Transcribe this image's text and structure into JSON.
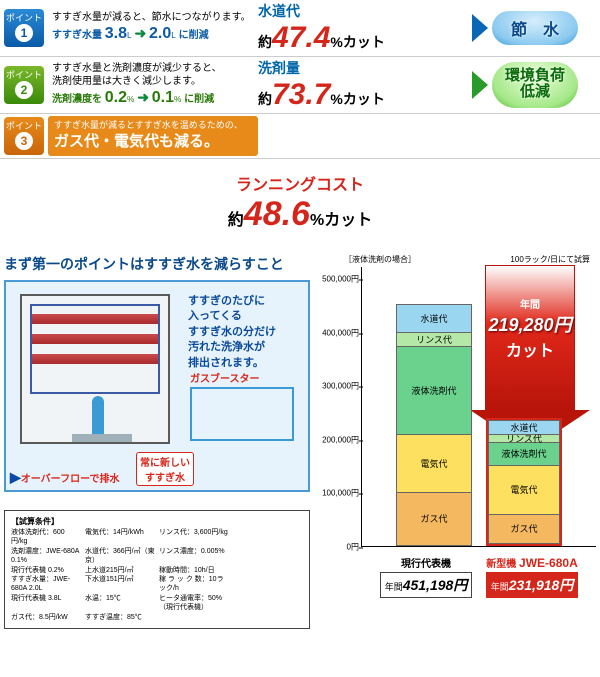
{
  "points": [
    {
      "badge_color": "blue",
      "label": "ポイント",
      "num": "1",
      "text_line1": "すすぎ水量が減ると、節水につながります。",
      "highlight_pre": "すすぎ水量 ",
      "val_from": "3.8",
      "val_to": "2.0",
      "unit": "L",
      "tail": "に削減",
      "metric_title": "水道代",
      "metric_prefix": "約",
      "metric_num": "47.4",
      "metric_suffix": "%カット",
      "title_color": "c-blue2",
      "bubble": "節　水",
      "bubble_class": "bub-blue",
      "chevron": "chev-blue"
    },
    {
      "badge_color": "green",
      "label": "ポイント",
      "num": "2",
      "text_line1": "すすぎ水量と洗剤濃度が減少すると、\n洗剤使用量は大きく減少します。",
      "highlight_pre": "洗剤濃度を ",
      "val_from": "0.2",
      "val_to": "0.1",
      "unit": "%",
      "tail": "に削減",
      "metric_title": "洗剤量",
      "metric_prefix": "約",
      "metric_num": "73.7",
      "metric_suffix": "%カット",
      "title_color": "c-blue2",
      "bubble": "環境負荷\n低減",
      "bubble_class": "bub-green",
      "chevron": "chev-green"
    },
    {
      "badge_color": "orange",
      "label": "ポイント",
      "num": "3",
      "orange_line1": "すすぎ水量が減るとすすぎ水を温めるための、",
      "orange_line2": "ガス代・電気代も減る。"
    }
  ],
  "running": {
    "title": "ランニングコスト",
    "prefix": "約",
    "num": "48.6",
    "suffix": "%カット"
  },
  "diagram": {
    "heading": "まず第一のポイントはすすぎ水を減らすこと",
    "text": "すすぎのたびに\n入ってくる\nすすぎ水の分だけ\n汚れた洗浄水が\n排出されます。",
    "gas_booster": "ガスブースター",
    "overflow": "オーバーフローで排水",
    "fresh": "常に新しい\nすすぎ水"
  },
  "conditions": {
    "title": "【試算条件】",
    "items": [
      "液体洗剤代：600円/kg",
      "電気代：14円/kWh",
      "リンス代：3,600円/kg",
      "",
      "洗剤濃度：JWE-680A 0.1%",
      "水道代：366円/㎥（東京）",
      "リンス濃度：0.005%",
      "",
      "現行代表機 0.2%",
      "上水道215円/㎥",
      "稼動時間：10h/日",
      "",
      "すすぎ水量：JWE-680A 2.0L",
      "下水道151円/㎥",
      "稼 ラ ッ ク 数：10ラック/h",
      "",
      "現行代表機 3.8L",
      "水温：15℃",
      "ヒータ通電率：50%（現行代表機）",
      "",
      "ガス代：8.5円/kW",
      "すすぎ温度：85℃",
      "",
      ""
    ]
  },
  "chart": {
    "header_left": "［液体洗剤の場合］",
    "header_right": "100ラック/日にて試算",
    "y_max": 500000,
    "y_ticks": [
      "0円",
      "100,000円",
      "200,000円",
      "300,000円",
      "400,000円",
      "500,000円"
    ],
    "big_arrow": {
      "small": "年間",
      "big": "219,280円",
      "cut": "カット"
    },
    "bars": [
      {
        "name": "現行代表機",
        "total_label": "451,198円",
        "total_prefix": "年間",
        "is_red": false,
        "segments": [
          {
            "label": "水道代",
            "value": 52204,
            "color": "9ad6f0"
          },
          {
            "label": "リンス代",
            "value": 24966,
            "color": "b4e8a6"
          },
          {
            "label": "液体洗剤代",
            "value": 164160,
            "color": "6ad28c"
          },
          {
            "label": "電気代",
            "value": 108867,
            "color": "fee060"
          },
          {
            "label": "ガス代",
            "value": 101001,
            "color": "f4b860"
          }
        ]
      },
      {
        "name": "新型機 ",
        "model": "JWE-680A",
        "total_label": "231,918円",
        "total_prefix": "年間",
        "is_red": true,
        "segments": [
          {
            "label": "水道代",
            "value": 27476,
            "color": "9ad6f0"
          },
          {
            "label": "リンス代",
            "value": 13140,
            "color": "b4e8a6"
          },
          {
            "label": "液体洗剤代",
            "value": 43200,
            "color": "6ad28c"
          },
          {
            "label": "電気代",
            "value": 92050,
            "color": "fee060"
          },
          {
            "label": "ガス代",
            "value": 56052,
            "color": "f4b860"
          }
        ]
      }
    ]
  }
}
